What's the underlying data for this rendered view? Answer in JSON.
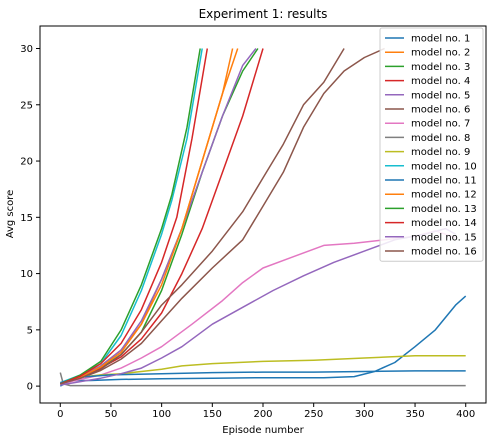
{
  "chart_data": {
    "type": "line",
    "title": "Experiment 1: results",
    "xlabel": "Episode number",
    "ylabel": "Avg score",
    "xlim": [
      -20,
      420
    ],
    "ylim": [
      -1.5,
      32
    ],
    "xticks": [
      0,
      50,
      100,
      150,
      200,
      250,
      300,
      350,
      400
    ],
    "yticks": [
      0,
      5,
      10,
      15,
      20,
      25,
      30
    ],
    "grid": false,
    "legend_position": "top-right",
    "series": [
      {
        "name": "model no. 1",
        "color": "#1f77b4",
        "points": [
          [
            0,
            0
          ],
          [
            10,
            0.5
          ],
          [
            30,
            0.5
          ],
          [
            60,
            0.6
          ],
          [
            100,
            0.65
          ],
          [
            150,
            0.7
          ],
          [
            200,
            0.75
          ],
          [
            260,
            0.75
          ],
          [
            290,
            0.85
          ],
          [
            310,
            1.3
          ],
          [
            330,
            2.1
          ],
          [
            350,
            3.5
          ],
          [
            370,
            5.0
          ],
          [
            390,
            7.2
          ],
          [
            400,
            8.0
          ]
        ]
      },
      {
        "name": "model no. 2",
        "color": "#ff7f0e",
        "points": [
          [
            0,
            0.2
          ],
          [
            20,
            0.9
          ],
          [
            40,
            1.8
          ],
          [
            60,
            3.2
          ],
          [
            80,
            5.5
          ],
          [
            100,
            9.5
          ],
          [
            120,
            14
          ],
          [
            140,
            20
          ],
          [
            160,
            26
          ],
          [
            175,
            30
          ]
        ]
      },
      {
        "name": "model no. 3",
        "color": "#2ca02c",
        "points": [
          [
            0,
            0.2
          ],
          [
            20,
            0.8
          ],
          [
            40,
            1.6
          ],
          [
            60,
            2.8
          ],
          [
            80,
            4.8
          ],
          [
            100,
            8.5
          ],
          [
            120,
            13.5
          ],
          [
            140,
            19
          ],
          [
            160,
            24
          ],
          [
            180,
            28
          ],
          [
            195,
            30
          ]
        ]
      },
      {
        "name": "model no. 4",
        "color": "#d62728",
        "points": [
          [
            0,
            0.2
          ],
          [
            20,
            0.7
          ],
          [
            40,
            1.6
          ],
          [
            60,
            2.6
          ],
          [
            80,
            4.2
          ],
          [
            100,
            6.5
          ],
          [
            120,
            10
          ],
          [
            140,
            14
          ],
          [
            160,
            19
          ],
          [
            180,
            24
          ],
          [
            200,
            30
          ]
        ]
      },
      {
        "name": "model no. 5",
        "color": "#9467bd",
        "points": [
          [
            0,
            0.2
          ],
          [
            20,
            0.8
          ],
          [
            40,
            1.8
          ],
          [
            60,
            3.2
          ],
          [
            80,
            5.8
          ],
          [
            100,
            9.5
          ],
          [
            120,
            14
          ],
          [
            140,
            19
          ],
          [
            160,
            24
          ],
          [
            180,
            28.5
          ],
          [
            193,
            30
          ]
        ]
      },
      {
        "name": "model no. 6",
        "color": "#8c564b",
        "points": [
          [
            0,
            0.2
          ],
          [
            20,
            0.7
          ],
          [
            40,
            1.4
          ],
          [
            60,
            2.4
          ],
          [
            80,
            3.8
          ],
          [
            100,
            5.8
          ],
          [
            120,
            7.8
          ],
          [
            150,
            10.5
          ],
          [
            180,
            13
          ],
          [
            200,
            16
          ],
          [
            220,
            19
          ],
          [
            240,
            23
          ],
          [
            260,
            26
          ],
          [
            280,
            28
          ],
          [
            300,
            29.2
          ],
          [
            320,
            30
          ]
        ]
      },
      {
        "name": "model no. 7",
        "color": "#e377c2",
        "points": [
          [
            0,
            0.2
          ],
          [
            20,
            0.6
          ],
          [
            40,
            1.0
          ],
          [
            60,
            1.6
          ],
          [
            80,
            2.5
          ],
          [
            100,
            3.5
          ],
          [
            130,
            5.5
          ],
          [
            160,
            7.6
          ],
          [
            180,
            9.2
          ],
          [
            200,
            10.5
          ],
          [
            230,
            11.5
          ],
          [
            260,
            12.5
          ],
          [
            290,
            12.7
          ],
          [
            320,
            13
          ],
          [
            350,
            13.3
          ],
          [
            370,
            13.8
          ],
          [
            390,
            13.2
          ]
        ]
      },
      {
        "name": "model no. 8",
        "color": "#7f7f7f",
        "points": [
          [
            0,
            1.2
          ],
          [
            3,
            0.2
          ],
          [
            10,
            0.05
          ],
          [
            50,
            0.05
          ],
          [
            100,
            0.05
          ],
          [
            200,
            0.05
          ],
          [
            300,
            0.05
          ],
          [
            400,
            0.05
          ]
        ]
      },
      {
        "name": "model no. 9",
        "color": "#bcbd22",
        "points": [
          [
            0,
            0.3
          ],
          [
            20,
            0.8
          ],
          [
            40,
            1.0
          ],
          [
            60,
            1.1
          ],
          [
            80,
            1.3
          ],
          [
            100,
            1.5
          ],
          [
            120,
            1.8
          ],
          [
            150,
            2.0
          ],
          [
            200,
            2.2
          ],
          [
            250,
            2.3
          ],
          [
            300,
            2.5
          ],
          [
            350,
            2.7
          ],
          [
            400,
            2.7
          ]
        ]
      },
      {
        "name": "model no. 10",
        "color": "#17becf",
        "points": [
          [
            0,
            0.3
          ],
          [
            20,
            1.0
          ],
          [
            40,
            2.0
          ],
          [
            60,
            4.5
          ],
          [
            80,
            8.5
          ],
          [
            100,
            13.5
          ],
          [
            110,
            16.5
          ],
          [
            125,
            22
          ],
          [
            140,
            30
          ]
        ]
      },
      {
        "name": "model no. 11",
        "color": "#1f77b4",
        "points": [
          [
            0,
            0.3
          ],
          [
            20,
            0.8
          ],
          [
            50,
            1.0
          ],
          [
            100,
            1.1
          ],
          [
            150,
            1.2
          ],
          [
            200,
            1.25
          ],
          [
            250,
            1.25
          ],
          [
            300,
            1.3
          ],
          [
            350,
            1.35
          ],
          [
            400,
            1.35
          ]
        ]
      },
      {
        "name": "model no. 12",
        "color": "#ff7f0e",
        "points": [
          [
            0,
            0.2
          ],
          [
            20,
            0.8
          ],
          [
            40,
            1.7
          ],
          [
            60,
            3.0
          ],
          [
            80,
            5.5
          ],
          [
            100,
            9.0
          ],
          [
            120,
            14
          ],
          [
            140,
            20
          ],
          [
            160,
            26
          ],
          [
            170,
            30
          ]
        ]
      },
      {
        "name": "model no. 13",
        "color": "#2ca02c",
        "points": [
          [
            0,
            0.2
          ],
          [
            20,
            1.0
          ],
          [
            40,
            2.2
          ],
          [
            60,
            5.0
          ],
          [
            80,
            9.0
          ],
          [
            100,
            14
          ],
          [
            110,
            17
          ],
          [
            125,
            23
          ],
          [
            138,
            30
          ]
        ]
      },
      {
        "name": "model no. 14",
        "color": "#d62728",
        "points": [
          [
            0,
            0.2
          ],
          [
            20,
            0.9
          ],
          [
            40,
            2.0
          ],
          [
            60,
            3.8
          ],
          [
            80,
            6.8
          ],
          [
            100,
            11.0
          ],
          [
            115,
            15
          ],
          [
            130,
            22
          ],
          [
            145,
            30
          ]
        ]
      },
      {
        "name": "model no. 15",
        "color": "#9467bd",
        "points": [
          [
            0,
            0.1
          ],
          [
            20,
            0.4
          ],
          [
            40,
            0.7
          ],
          [
            60,
            1.1
          ],
          [
            80,
            1.6
          ],
          [
            100,
            2.5
          ],
          [
            120,
            3.5
          ],
          [
            150,
            5.5
          ],
          [
            180,
            7.0
          ],
          [
            210,
            8.5
          ],
          [
            240,
            9.8
          ],
          [
            270,
            11.0
          ],
          [
            300,
            12.0
          ],
          [
            330,
            13.0
          ],
          [
            360,
            13.5
          ],
          [
            380,
            14.0
          ],
          [
            390,
            13.5
          ]
        ]
      },
      {
        "name": "model no. 16",
        "color": "#8c564b",
        "points": [
          [
            0,
            0.2
          ],
          [
            20,
            0.7
          ],
          [
            40,
            1.5
          ],
          [
            60,
            2.8
          ],
          [
            80,
            4.8
          ],
          [
            100,
            7.2
          ],
          [
            120,
            9.0
          ],
          [
            150,
            12.0
          ],
          [
            180,
            15.5
          ],
          [
            200,
            18.5
          ],
          [
            220,
            21.5
          ],
          [
            240,
            25
          ],
          [
            260,
            27
          ],
          [
            280,
            30
          ]
        ]
      }
    ]
  }
}
